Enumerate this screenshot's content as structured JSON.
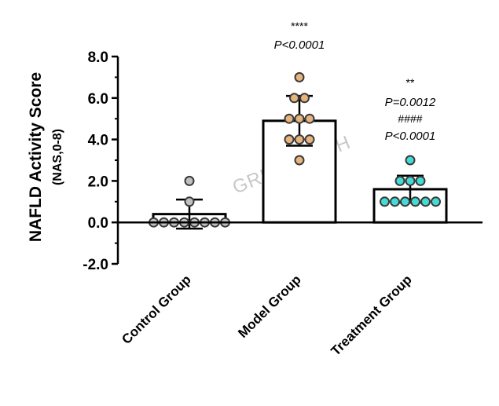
{
  "chart_data": {
    "type": "bar",
    "title": "",
    "ylabel": "NAFLD Activity Score",
    "ylabel_sub": "(NAS,0-8)",
    "xlabel": "",
    "ylim": [
      -2,
      8
    ],
    "yticks": [
      "-2.0",
      "0.0",
      "2.0",
      "4.0",
      "6.0",
      "8.0"
    ],
    "yticks_values": [
      -2,
      0,
      2,
      4,
      6,
      8
    ],
    "categories": [
      "Control Group",
      "Model Group",
      "Treatment Group"
    ],
    "values": [
      0.4,
      4.9,
      1.6
    ],
    "error": [
      0.7,
      1.2,
      0.65
    ],
    "points": [
      [
        2,
        1,
        0,
        0,
        0,
        0,
        0,
        0,
        0,
        0
      ],
      [
        7,
        6,
        6,
        5,
        5,
        5,
        4,
        4,
        4,
        3
      ],
      [
        3,
        2,
        2,
        2,
        1,
        1,
        1,
        1,
        1,
        1
      ]
    ],
    "point_colors": [
      "#c0c0c0",
      "#e8b47e",
      "#42dcd4"
    ],
    "bar_fill": "#ffffff",
    "bar_stroke": "#000000",
    "annotations": [
      {
        "category": "Model Group",
        "lines": [
          "****",
          "P<0.0001"
        ]
      },
      {
        "category": "Treatment Group",
        "lines": [
          "**",
          "P=0.0012",
          "####",
          "P<0.0001"
        ]
      }
    ],
    "watermark": "GREENTECH",
    "grid": false,
    "legend": "none"
  }
}
